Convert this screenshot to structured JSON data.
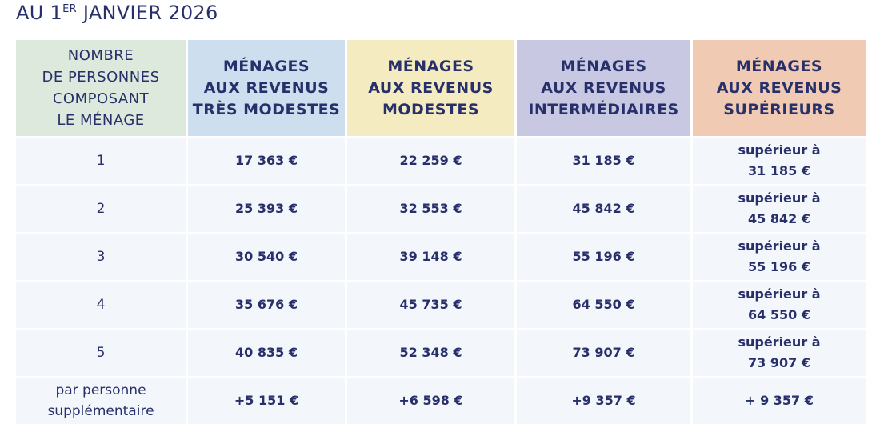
{
  "title": {
    "prefix": "AU 1",
    "sup": "ER",
    "suffix": " JANVIER 2026"
  },
  "headers": [
    "NOMBRE\nDE PERSONNES\nCOMPOSANT\nLE MÉNAGE",
    "MÉNAGES\nAUX REVENUS\nTRÈS MODESTES",
    "MÉNAGES\nAUX REVENUS\nMODESTES",
    "MÉNAGES\nAUX REVENUS\nINTERMÉDIAIRES",
    "MÉNAGES\nAUX REVENUS\nSUPÉRIEURS"
  ],
  "header_colors": [
    "#dce9dc",
    "#cddfee",
    "#f4ecc0",
    "#c9c8e3",
    "#f1cab4"
  ],
  "rows": [
    [
      "1",
      "17 363 €",
      "22 259 €",
      "31 185 €",
      "supérieur à\n31 185 €"
    ],
    [
      "2",
      "25 393 €",
      "32 553 €",
      "45 842 €",
      "supérieur à\n45 842 €"
    ],
    [
      "3",
      "30 540 €",
      "39 148 €",
      "55 196 €",
      "supérieur à\n55 196 €"
    ],
    [
      "4",
      "35 676 €",
      "45 735 €",
      "64 550 €",
      "supérieur à\n64 550 €"
    ],
    [
      "5",
      "40 835 €",
      "52 348 €",
      "73 907 €",
      "supérieur à\n73 907 €"
    ],
    [
      "par personne\nsupplémentaire",
      "+5 151 €",
      "+6 598 €",
      "+9 357 €",
      "+ 9 357 €"
    ]
  ]
}
